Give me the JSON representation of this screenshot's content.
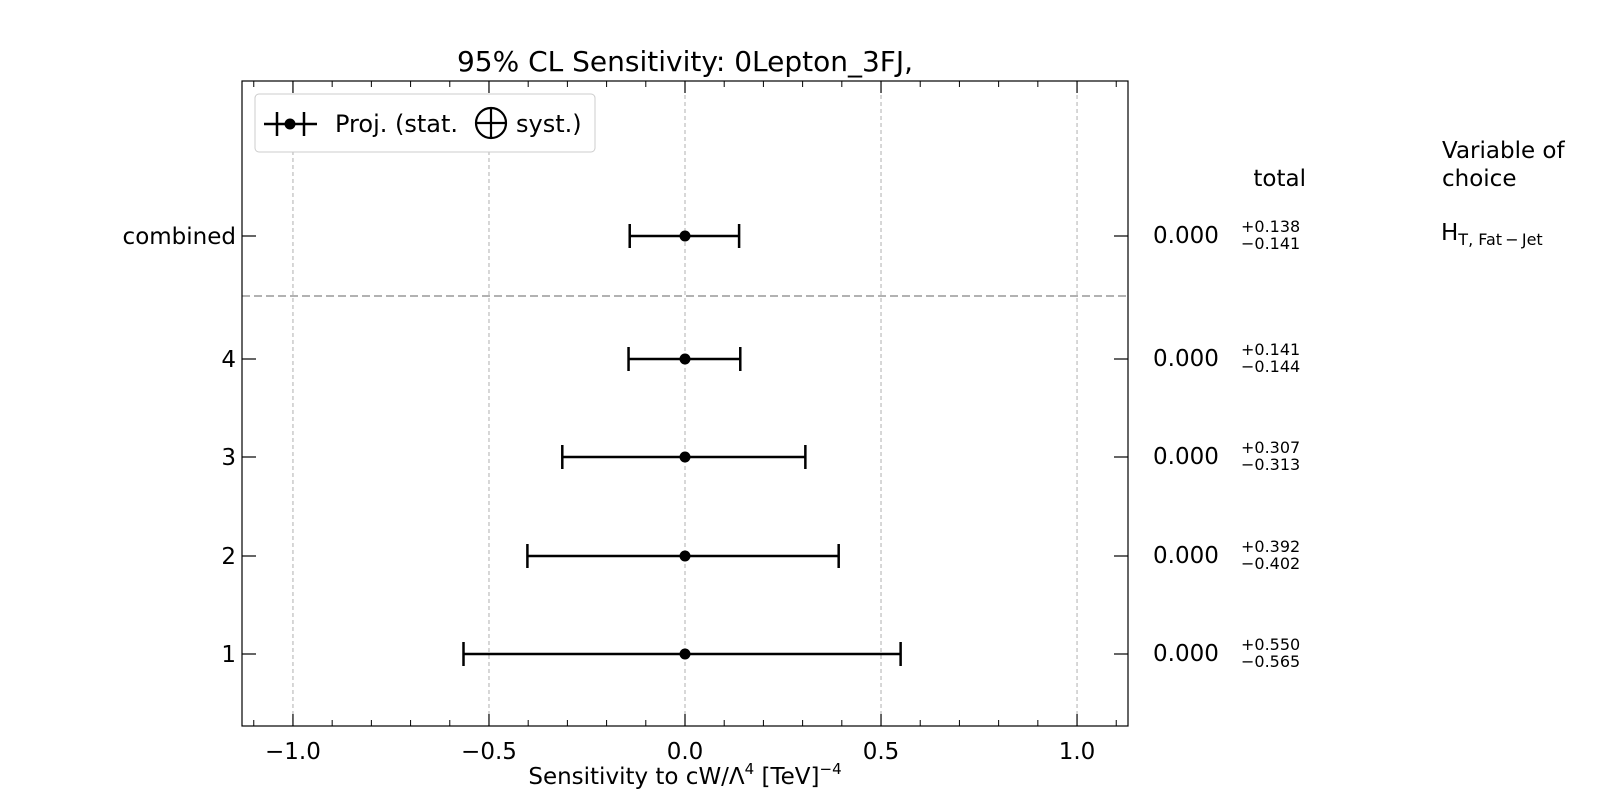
{
  "chart_data": {
    "type": "errorbar",
    "title": "95% CL Sensitivity: 0Lepton_3FJ,",
    "xlabel": "Sensitivity to cW/Λ",
    "xlabel_power": "4",
    "xlabel_unit": " [TeV]",
    "xlabel_unit_power": "−4",
    "xlim": [
      -1.13,
      1.13
    ],
    "xticks": [
      -1.0,
      -0.5,
      0.0,
      0.5,
      1.0
    ],
    "xtick_labels": [
      "−1.0",
      "−0.5",
      "0.0",
      "0.5",
      "1.0"
    ],
    "grid": "vertical dashed",
    "legend": {
      "placement": "top-left",
      "label_before": "Proj. (stat.",
      "label_after": "syst.)"
    },
    "header": {
      "total": "total",
      "variable_line1": "Variable of",
      "variable_line2": "choice"
    },
    "variable": {
      "main": "H",
      "sub": "T, Fat − Jet"
    },
    "rows": [
      {
        "label": "combined",
        "value": 0.0,
        "up": 0.138,
        "down": 0.141,
        "value_text": "0.000",
        "up_text": "+0.138",
        "down_text": "−0.141"
      },
      {
        "label": "4",
        "value": 0.0,
        "up": 0.141,
        "down": 0.144,
        "value_text": "0.000",
        "up_text": "+0.141",
        "down_text": "−0.144"
      },
      {
        "label": "3",
        "value": 0.0,
        "up": 0.307,
        "down": 0.313,
        "value_text": "0.000",
        "up_text": "+0.307",
        "down_text": "−0.313"
      },
      {
        "label": "2",
        "value": 0.0,
        "up": 0.392,
        "down": 0.402,
        "value_text": "0.000",
        "up_text": "+0.392",
        "down_text": "−0.402"
      },
      {
        "label": "1",
        "value": 0.0,
        "up": 0.55,
        "down": 0.565,
        "value_text": "0.000",
        "up_text": "+0.550",
        "down_text": "−0.565"
      }
    ]
  }
}
